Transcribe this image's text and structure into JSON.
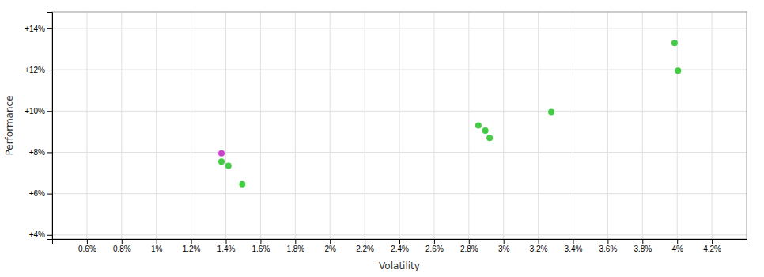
{
  "chart_data": {
    "type": "scatter",
    "xlabel": "Volatility",
    "ylabel": "Performance",
    "xlim": [
      0.004,
      0.044
    ],
    "ylim": [
      0.038,
      0.148
    ],
    "xticks": [
      {
        "value": 0.006,
        "label": "0.6%"
      },
      {
        "value": 0.008,
        "label": "0.8%"
      },
      {
        "value": 0.01,
        "label": "1%"
      },
      {
        "value": 0.012,
        "label": "1.2%"
      },
      {
        "value": 0.014,
        "label": "1.4%"
      },
      {
        "value": 0.016,
        "label": "1.6%"
      },
      {
        "value": 0.018,
        "label": "1.8%"
      },
      {
        "value": 0.02,
        "label": "2%"
      },
      {
        "value": 0.022,
        "label": "2.2%"
      },
      {
        "value": 0.024,
        "label": "2.4%"
      },
      {
        "value": 0.026,
        "label": "2.6%"
      },
      {
        "value": 0.028,
        "label": "2.8%"
      },
      {
        "value": 0.03,
        "label": "3%"
      },
      {
        "value": 0.032,
        "label": "3.2%"
      },
      {
        "value": 0.034,
        "label": "3.4%"
      },
      {
        "value": 0.036,
        "label": "3.6%"
      },
      {
        "value": 0.038,
        "label": "3.8%"
      },
      {
        "value": 0.04,
        "label": "4%"
      },
      {
        "value": 0.042,
        "label": "4.2%"
      }
    ],
    "yticks": [
      {
        "value": 0.04,
        "label": "+4%"
      },
      {
        "value": 0.06,
        "label": "+6%"
      },
      {
        "value": 0.08,
        "label": "+8%"
      },
      {
        "value": 0.1,
        "label": "+10%"
      },
      {
        "value": 0.12,
        "label": "+12%"
      },
      {
        "value": 0.14,
        "label": "+14%"
      }
    ],
    "x": [
      0.01375,
      0.01375,
      0.01415,
      0.01495,
      0.02855,
      0.02895,
      0.0292,
      0.03275,
      0.03985,
      0.04005
    ],
    "values": [
      0.0795,
      0.0755,
      0.0735,
      0.0645,
      0.093,
      0.0905,
      0.087,
      0.0995,
      0.133,
      0.1195
    ],
    "colors": [
      "#cc44cc",
      "#44cc44",
      "#44cc44",
      "#44cc44",
      "#44cc44",
      "#44cc44",
      "#44cc44",
      "#44cc44",
      "#44cc44",
      "#44cc44"
    ],
    "grid": true
  }
}
